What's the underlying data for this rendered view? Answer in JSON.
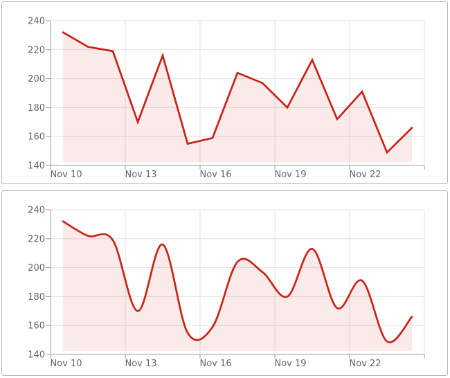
{
  "colors": {
    "line": "#c82519",
    "fill": "#c82519",
    "fill_opacity": 0.09,
    "grid": "#e2e2e2",
    "axis": "#9b9b9b",
    "tick_text": "#60666c",
    "panel_border": "#b3b3b3",
    "panel_bg": "#ffffff",
    "page_bg": "#ffffff"
  },
  "chart_data": [
    {
      "type": "area",
      "line_style": "linear",
      "title": "",
      "categories": [
        "Nov 10",
        "Nov 11",
        "Nov 12",
        "Nov 13",
        "Nov 14",
        "Nov 15",
        "Nov 16",
        "Nov 17",
        "Nov 18",
        "Nov 19",
        "Nov 20",
        "Nov 21",
        "Nov 22",
        "Nov 23",
        "Nov 24"
      ],
      "values": [
        232,
        222,
        219,
        170,
        216,
        155,
        159,
        204,
        197,
        180,
        213,
        172,
        191,
        149,
        166
      ],
      "x_tick_labels": [
        "Nov 10",
        "Nov 13",
        "Nov 16",
        "Nov 19",
        "Nov 22"
      ],
      "x_tick_every": 3,
      "y_ticks": [
        240,
        220,
        200,
        180,
        160,
        140
      ],
      "ylim": [
        140,
        240
      ],
      "xlabel": "",
      "ylabel": "",
      "grid": true,
      "legend": "none",
      "markers": "none"
    },
    {
      "type": "area",
      "line_style": "spline",
      "title": "",
      "categories": [
        "Nov 10",
        "Nov 11",
        "Nov 12",
        "Nov 13",
        "Nov 14",
        "Nov 15",
        "Nov 16",
        "Nov 17",
        "Nov 18",
        "Nov 19",
        "Nov 20",
        "Nov 21",
        "Nov 22",
        "Nov 23",
        "Nov 24"
      ],
      "values": [
        232,
        222,
        219,
        170,
        216,
        155,
        159,
        204,
        197,
        180,
        213,
        172,
        191,
        149,
        166
      ],
      "x_tick_labels": [
        "Nov 10",
        "Nov 13",
        "Nov 16",
        "Nov 19",
        "Nov 22"
      ],
      "x_tick_every": 3,
      "y_ticks": [
        240,
        220,
        200,
        180,
        160,
        140
      ],
      "ylim": [
        140,
        240
      ],
      "xlabel": "",
      "ylabel": "",
      "grid": true,
      "legend": "none",
      "markers": "none"
    }
  ]
}
